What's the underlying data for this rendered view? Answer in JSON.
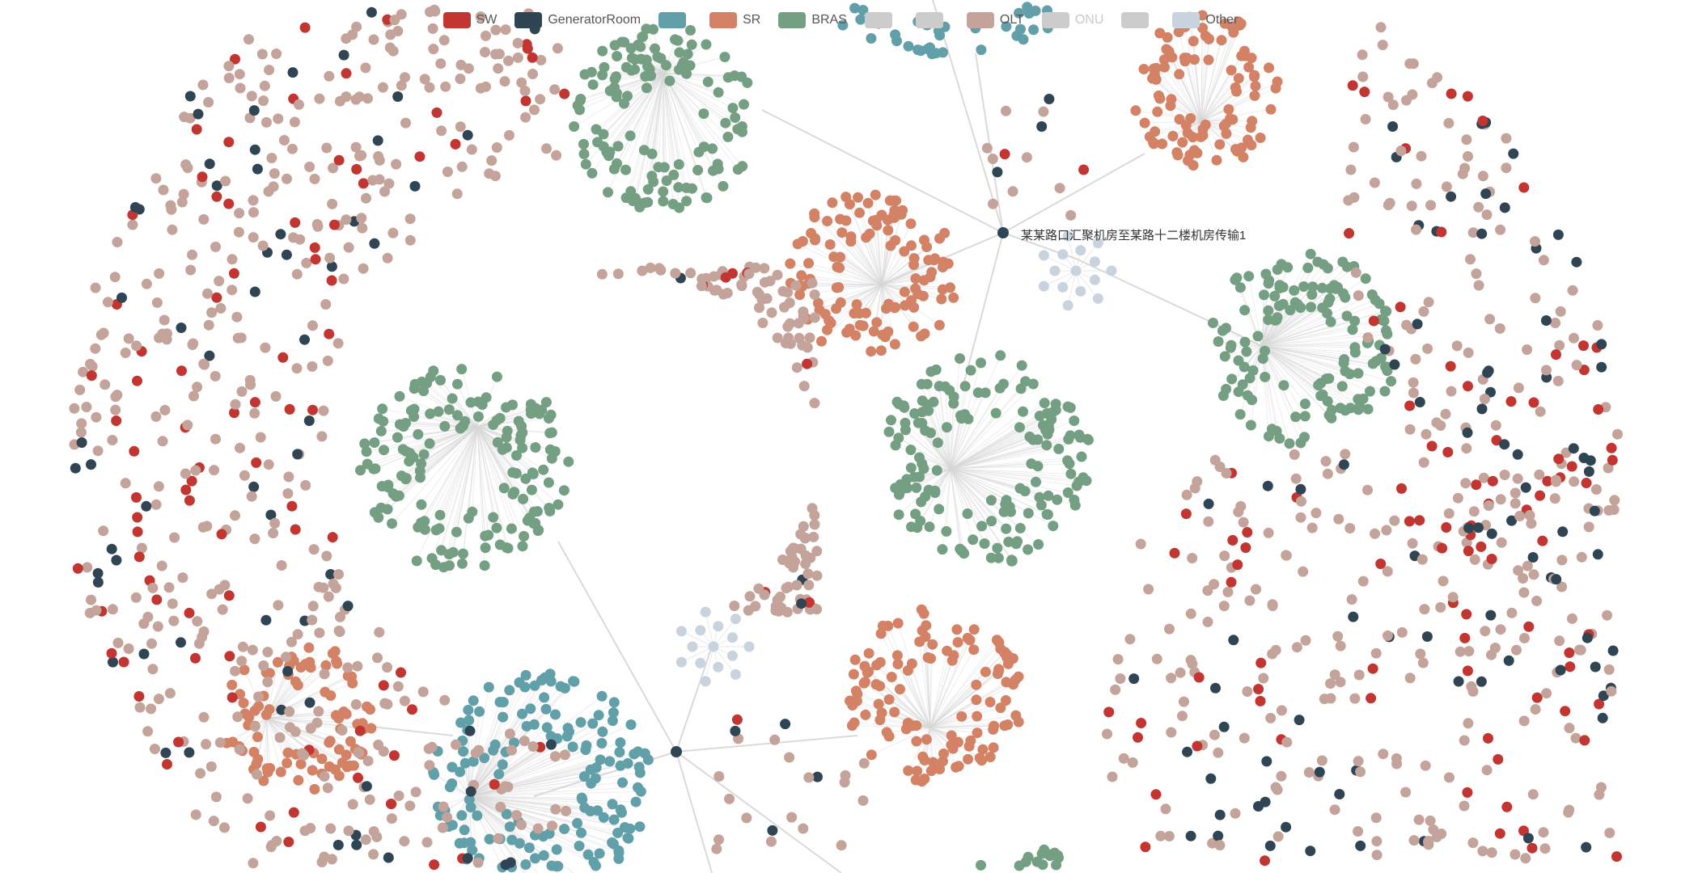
{
  "legend": {
    "items": [
      {
        "label": "SW",
        "color": "#c23531",
        "active": true
      },
      {
        "label": "GeneratorRoom",
        "color": "#2f4554",
        "active": true
      },
      {
        "label": "",
        "color": "#61a0a8",
        "active": true
      },
      {
        "label": "SR",
        "color": "#d48265",
        "active": true
      },
      {
        "label": "BRAS",
        "color": "#749f83",
        "active": true
      },
      {
        "label": "",
        "color": "#cccccc",
        "active": false
      },
      {
        "label": "",
        "color": "#cccccc",
        "active": false
      },
      {
        "label": "OLT",
        "color": "#c4a39a",
        "active": true
      },
      {
        "label": "ONU",
        "color": "#cccccc",
        "active": false
      },
      {
        "label": "",
        "color": "#cccccc",
        "active": false
      },
      {
        "label": "Other",
        "color": "#c9d3de",
        "active": true
      }
    ]
  },
  "focus_label": "某某路口汇聚机房至某路十二楼机房传输1",
  "colors": {
    "sw": "#c23531",
    "generator": "#2f4554",
    "teal": "#61a0a8",
    "sr": "#d48265",
    "bras": "#749f83",
    "olt": "#c4a39a",
    "other": "#c9d3de",
    "edge": "#d6d6d6"
  }
}
